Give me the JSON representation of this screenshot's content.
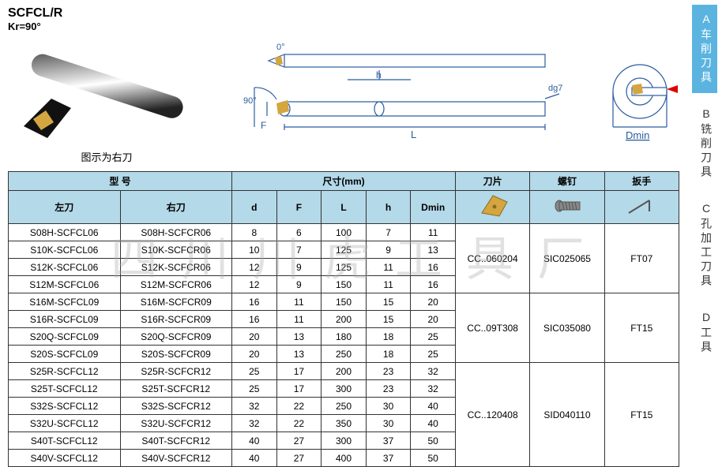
{
  "title": "SCFCL/R",
  "subtitle": "Kr=90°",
  "photo_caption": "图示为右刀",
  "sidebar": [
    {
      "label": "A车削刀具",
      "active": true
    },
    {
      "label": "B铣削刀具",
      "active": false
    },
    {
      "label": "C孔加工刀具",
      "active": false
    },
    {
      "label": "D工具",
      "active": false
    }
  ],
  "headers": {
    "model": "型  号",
    "dims": "尺寸(mm)",
    "insert": "刀片",
    "screw": "螺钉",
    "wrench": "扳手",
    "left": "左刀",
    "right": "右刀",
    "d": "d",
    "F": "F",
    "L": "L",
    "h": "h",
    "Dmin": "Dmin"
  },
  "diagram_labels": {
    "angle0": "0°",
    "angle90": "90°",
    "F": "F",
    "h": "h",
    "L": "L",
    "dg7": "dg7",
    "Dmin": "Dmin"
  },
  "groups": [
    {
      "insert": "CC..060204",
      "screw": "SIC025065",
      "wrench": "FT07",
      "rows": [
        {
          "left": "S08H-SCFCL06",
          "right": "S08H-SCFCR06",
          "d": "8",
          "F": "6",
          "L": "100",
          "h": "7",
          "Dmin": "11"
        },
        {
          "left": "S10K-SCFCL06",
          "right": "S10K-SCFCR06",
          "d": "10",
          "F": "7",
          "L": "125",
          "h": "9",
          "Dmin": "13"
        },
        {
          "left": "S12K-SCFCL06",
          "right": "S12K-SCFCR06",
          "d": "12",
          "F": "9",
          "L": "125",
          "h": "11",
          "Dmin": "16"
        },
        {
          "left": "S12M-SCFCL06",
          "right": "S12M-SCFCR06",
          "d": "12",
          "F": "9",
          "L": "150",
          "h": "11",
          "Dmin": "16"
        }
      ]
    },
    {
      "insert": "CC..09T308",
      "screw": "SIC035080",
      "wrench": "FT15",
      "rows": [
        {
          "left": "S16M-SCFCL09",
          "right": "S16M-SCFCR09",
          "d": "16",
          "F": "11",
          "L": "150",
          "h": "15",
          "Dmin": "20"
        },
        {
          "left": "S16R-SCFCL09",
          "right": "S16R-SCFCR09",
          "d": "16",
          "F": "11",
          "L": "200",
          "h": "15",
          "Dmin": "20"
        },
        {
          "left": "S20Q-SCFCL09",
          "right": "S20Q-SCFCR09",
          "d": "20",
          "F": "13",
          "L": "180",
          "h": "18",
          "Dmin": "25"
        },
        {
          "left": "S20S-SCFCL09",
          "right": "S20S-SCFCR09",
          "d": "20",
          "F": "13",
          "L": "250",
          "h": "18",
          "Dmin": "25"
        }
      ]
    },
    {
      "insert": "CC..120408",
      "screw": "SID040110",
      "wrench": "FT15",
      "rows": [
        {
          "left": "S25R-SCFCL12",
          "right": "S25R-SCFCR12",
          "d": "25",
          "F": "17",
          "L": "200",
          "h": "23",
          "Dmin": "32"
        },
        {
          "left": "S25T-SCFCL12",
          "right": "S25T-SCFCR12",
          "d": "25",
          "F": "17",
          "L": "300",
          "h": "23",
          "Dmin": "32"
        },
        {
          "left": "S32S-SCFCL12",
          "right": "S32S-SCFCR12",
          "d": "32",
          "F": "22",
          "L": "250",
          "h": "30",
          "Dmin": "40"
        },
        {
          "left": "S32U-SCFCL12",
          "right": "S32U-SCFCR12",
          "d": "32",
          "F": "22",
          "L": "350",
          "h": "30",
          "Dmin": "40"
        },
        {
          "left": "S40T-SCFCL12",
          "right": "S40T-SCFCR12",
          "d": "40",
          "F": "27",
          "L": "300",
          "h": "37",
          "Dmin": "50"
        },
        {
          "left": "S40V-SCFCL12",
          "right": "S40V-SCFCR12",
          "d": "40",
          "F": "27",
          "L": "400",
          "h": "37",
          "Dmin": "50"
        }
      ]
    }
  ],
  "watermark": "四川川虎工具厂",
  "colors": {
    "header_bg": "#b4d9e8",
    "sidebar_active": "#5bb4e0",
    "line": "#3060a0"
  }
}
